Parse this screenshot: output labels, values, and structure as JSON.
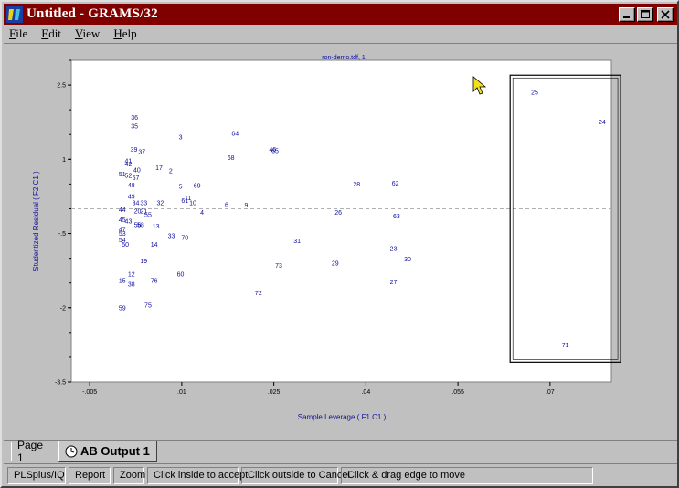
{
  "window": {
    "title": "Untitled - GRAMS/32",
    "app_icon": "grams-app-icon"
  },
  "menu": [
    {
      "label": "File",
      "accel": "F",
      "rest": "ile"
    },
    {
      "label": "Edit",
      "accel": "E",
      "rest": "dit"
    },
    {
      "label": "View",
      "accel": "V",
      "rest": "iew"
    },
    {
      "label": "Help",
      "accel": "H",
      "rest": "elp"
    }
  ],
  "chart_data": {
    "type": "scatter",
    "title": "ron-demo.tdf, 1",
    "xlabel": "Sample Leverage ( F1 C1 )",
    "ylabel": "Studentized Residual ( F2 C1 )",
    "xlim": [
      -0.008,
      0.08
    ],
    "ylim": [
      -3.5,
      3
    ],
    "x_ticks": [
      {
        "value": -0.005,
        "label": "-.005"
      },
      {
        "value": 0.01,
        "label": ".01"
      },
      {
        "value": 0.025,
        "label": ".025"
      },
      {
        "value": 0.04,
        "label": ".04"
      },
      {
        "value": 0.055,
        "label": ".055"
      },
      {
        "value": 0.07,
        "label": ".07"
      }
    ],
    "y_ticks": [
      {
        "value": 2.5,
        "label": "2.5"
      },
      {
        "value": 1,
        "label": "1"
      },
      {
        "value": -0.5,
        "label": "-.5"
      },
      {
        "value": -2,
        "label": "-2"
      },
      {
        "value": -3.5,
        "label": "-3.5"
      }
    ],
    "reference_line_y": 0,
    "selection_box": {
      "x": [
        0.0635,
        0.0815
      ],
      "y": [
        -3.1,
        2.7
      ]
    },
    "points": [
      {
        "label": "25",
        "x": 0.0675,
        "y": 2.35
      },
      {
        "label": "24",
        "x": 0.0785,
        "y": 1.75
      },
      {
        "label": "71",
        "x": 0.0725,
        "y": -2.75
      },
      {
        "label": "36",
        "x": 0.0023,
        "y": 1.85
      },
      {
        "label": "35",
        "x": 0.0023,
        "y": 1.67
      },
      {
        "label": "3",
        "x": 0.0098,
        "y": 1.45
      },
      {
        "label": "64",
        "x": 0.0187,
        "y": 1.52
      },
      {
        "label": "39",
        "x": 0.0022,
        "y": 1.2
      },
      {
        "label": "37",
        "x": 0.0035,
        "y": 1.15
      },
      {
        "label": "65",
        "x": 0.0252,
        "y": 1.17
      },
      {
        "label": "46",
        "x": 0.0248,
        "y": 1.2
      },
      {
        "label": "68",
        "x": 0.018,
        "y": 1.03
      },
      {
        "label": "41",
        "x": 0.0013,
        "y": 0.97
      },
      {
        "label": "42",
        "x": 0.0013,
        "y": 0.9
      },
      {
        "label": "17",
        "x": 0.0063,
        "y": 0.83
      },
      {
        "label": "2",
        "x": 0.0082,
        "y": 0.77
      },
      {
        "label": "40",
        "x": 0.0027,
        "y": 0.78
      },
      {
        "label": "51",
        "x": 0.0003,
        "y": 0.7
      },
      {
        "label": "52",
        "x": 0.0013,
        "y": 0.67
      },
      {
        "label": "57",
        "x": 0.0025,
        "y": 0.63
      },
      {
        "label": "28",
        "x": 0.0385,
        "y": 0.5
      },
      {
        "label": "62",
        "x": 0.0448,
        "y": 0.52
      },
      {
        "label": "5",
        "x": 0.0098,
        "y": 0.45
      },
      {
        "label": "69",
        "x": 0.0125,
        "y": 0.47
      },
      {
        "label": "48",
        "x": 0.0018,
        "y": 0.48
      },
      {
        "label": "49",
        "x": 0.0018,
        "y": 0.25
      },
      {
        "label": "61",
        "x": 0.0105,
        "y": 0.17
      },
      {
        "label": "11",
        "x": 0.011,
        "y": 0.22
      },
      {
        "label": "32",
        "x": 0.0065,
        "y": 0.12
      },
      {
        "label": "10",
        "x": 0.0118,
        "y": 0.12
      },
      {
        "label": "34",
        "x": 0.0025,
        "y": 0.12
      },
      {
        "label": "33",
        "x": 0.0038,
        "y": 0.12
      },
      {
        "label": "6",
        "x": 0.0173,
        "y": 0.08
      },
      {
        "label": "9",
        "x": 0.0205,
        "y": 0.07
      },
      {
        "label": "44",
        "x": 0.0003,
        "y": -0.02
      },
      {
        "label": "20",
        "x": 0.0028,
        "y": -0.05
      },
      {
        "label": "21",
        "x": 0.0038,
        "y": -0.05
      },
      {
        "label": "4",
        "x": 0.0133,
        "y": -0.07
      },
      {
        "label": "55",
        "x": 0.0045,
        "y": -0.12
      },
      {
        "label": "26",
        "x": 0.0355,
        "y": -0.07
      },
      {
        "label": "63",
        "x": 0.045,
        "y": -0.15
      },
      {
        "label": "45",
        "x": 0.0003,
        "y": -0.22
      },
      {
        "label": "43",
        "x": 0.0013,
        "y": -0.25
      },
      {
        "label": "56",
        "x": 0.0028,
        "y": -0.32
      },
      {
        "label": "58",
        "x": 0.0033,
        "y": -0.32
      },
      {
        "label": "13",
        "x": 0.0058,
        "y": -0.35
      },
      {
        "label": "47",
        "x": 0.0003,
        "y": -0.42
      },
      {
        "label": "53",
        "x": 0.0003,
        "y": -0.5
      },
      {
        "label": "54",
        "x": 0.0003,
        "y": -0.63
      },
      {
        "label": "50",
        "x": 0.0008,
        "y": -0.72
      },
      {
        "label": "33",
        "x": 0.0083,
        "y": -0.55
      },
      {
        "label": "70",
        "x": 0.0105,
        "y": -0.58
      },
      {
        "label": "31",
        "x": 0.0288,
        "y": -0.65
      },
      {
        "label": "14",
        "x": 0.0055,
        "y": -0.72
      },
      {
        "label": "23",
        "x": 0.0445,
        "y": -0.8
      },
      {
        "label": "19",
        "x": 0.0038,
        "y": -1.05
      },
      {
        "label": "29",
        "x": 0.035,
        "y": -1.1
      },
      {
        "label": "73",
        "x": 0.0258,
        "y": -1.15
      },
      {
        "label": "30",
        "x": 0.0468,
        "y": -1.02
      },
      {
        "label": "60",
        "x": 0.0098,
        "y": -1.32
      },
      {
        "label": "12",
        "x": 0.0018,
        "y": -1.32
      },
      {
        "label": "15",
        "x": 0.0003,
        "y": -1.45
      },
      {
        "label": "76",
        "x": 0.0055,
        "y": -1.45
      },
      {
        "label": "38",
        "x": 0.0018,
        "y": -1.52
      },
      {
        "label": "27",
        "x": 0.0445,
        "y": -1.48
      },
      {
        "label": "72",
        "x": 0.0225,
        "y": -1.7
      },
      {
        "label": "75",
        "x": 0.0045,
        "y": -1.95
      },
      {
        "label": "59",
        "x": 0.0003,
        "y": -2.0
      }
    ]
  },
  "tabs": [
    {
      "label": "Page 1",
      "active": false
    },
    {
      "label": "AB Output 1",
      "active": true
    }
  ],
  "status": [
    "PLSplus/IQ",
    "Report",
    "Zoom",
    "Click inside to accept",
    "Click outside to Cancel",
    "Click & drag edge to move"
  ],
  "colors": {
    "titlebar": "#800000",
    "plot_text": "#1010a0",
    "reference_line": "#b0b0b0"
  }
}
